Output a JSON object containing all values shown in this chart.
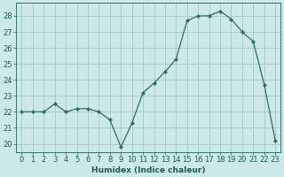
{
  "x": [
    0,
    1,
    2,
    3,
    4,
    5,
    6,
    7,
    8,
    9,
    10,
    11,
    12,
    13,
    14,
    15,
    16,
    17,
    18,
    19,
    20,
    21,
    22,
    23
  ],
  "y": [
    22.0,
    22.0,
    22.0,
    22.5,
    22.0,
    22.2,
    22.2,
    22.0,
    21.5,
    19.8,
    21.3,
    23.2,
    23.8,
    24.5,
    25.3,
    27.7,
    28.0,
    28.0,
    28.3,
    27.8,
    27.0,
    26.4,
    23.7,
    20.2
  ],
  "line_color": "#2d6e5e",
  "marker": "D",
  "marker_size": 2.0,
  "bg_color": "#cce9e9",
  "grid_color": "#aacccc",
  "xlabel": "Humidex (Indice chaleur)",
  "xlim": [
    -0.5,
    23.5
  ],
  "ylim": [
    19.5,
    28.8
  ],
  "yticks": [
    20,
    21,
    22,
    23,
    24,
    25,
    26,
    27,
    28
  ],
  "xticks": [
    0,
    1,
    2,
    3,
    4,
    5,
    6,
    7,
    8,
    9,
    10,
    11,
    12,
    13,
    14,
    15,
    16,
    17,
    18,
    19,
    20,
    21,
    22,
    23
  ],
  "xlabel_fontsize": 6.5,
  "tick_fontsize": 6.0,
  "label_color": "#1e5c4e",
  "linewidth": 0.9
}
